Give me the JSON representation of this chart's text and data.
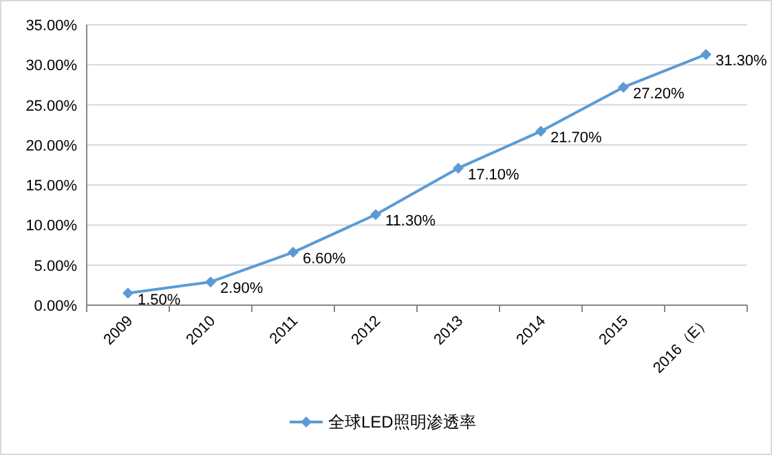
{
  "chart_data": {
    "type": "line",
    "categories": [
      "2009",
      "2010",
      "2011",
      "2012",
      "2013",
      "2014",
      "2015",
      "2016（E）"
    ],
    "series": [
      {
        "name": "全球LED照明渗透率",
        "color": "#5b9bd5",
        "values": [
          1.5,
          2.9,
          6.6,
          11.3,
          17.1,
          21.7,
          27.2,
          31.3
        ],
        "value_labels": [
          "1.50%",
          "2.90%",
          "6.60%",
          "11.30%",
          "17.10%",
          "21.70%",
          "27.20%",
          "31.30%"
        ]
      }
    ],
    "ylim": [
      0,
      35
    ],
    "yticks": [
      {
        "value": 0,
        "label": "0.00%"
      },
      {
        "value": 5,
        "label": "5.00%"
      },
      {
        "value": 10,
        "label": "10.00%"
      },
      {
        "value": 15,
        "label": "15.00%"
      },
      {
        "value": 20,
        "label": "20.00%"
      },
      {
        "value": 25,
        "label": "25.00%"
      },
      {
        "value": 30,
        "label": "30.00%"
      },
      {
        "value": 35,
        "label": "35.00%"
      }
    ],
    "grid": "y",
    "legend": "bottom",
    "marker": "diamond"
  }
}
